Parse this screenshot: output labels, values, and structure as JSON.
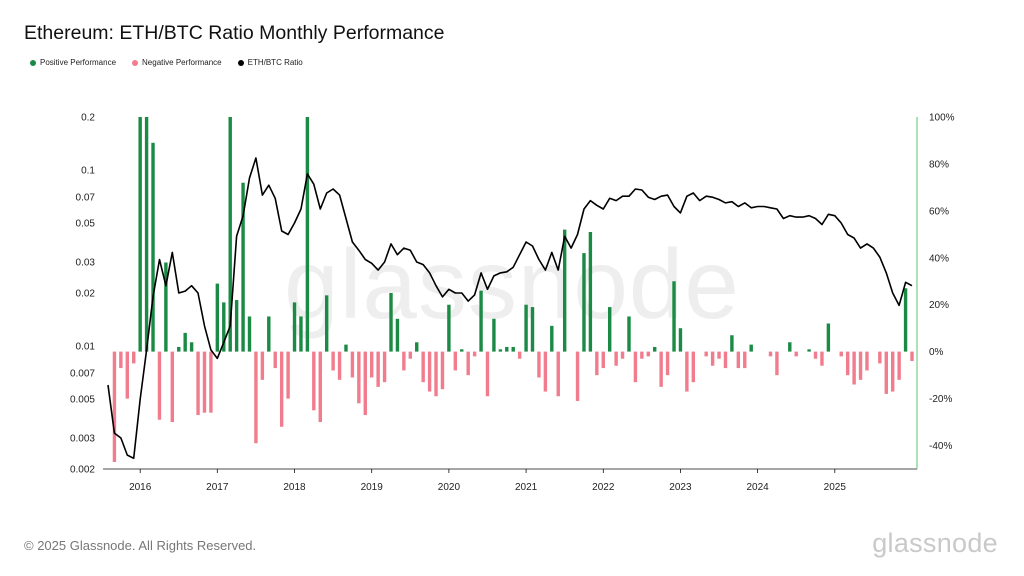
{
  "title": "Ethereum: ETH/BTC Ratio Monthly Performance",
  "legend": [
    {
      "label": "Positive Performance",
      "color": "#1a8a45"
    },
    {
      "label": "Negative Performance",
      "color": "#f07c8d"
    },
    {
      "label": "ETH/BTC Ratio",
      "color": "#000000"
    }
  ],
  "watermark": "glassnode",
  "footer": "© 2025 Glassnode. All Rights Reserved.",
  "brand": "glassnode",
  "colors": {
    "positive": "#1a8a45",
    "negative": "#f07c8d",
    "ratio": "#000000",
    "right_axis": "#5cc46e"
  },
  "chart_data": {
    "type": "bar+line",
    "x_start": "2015-08",
    "x_labels": [
      "2016",
      "2017",
      "2018",
      "2019",
      "2020",
      "2021",
      "2022",
      "2023",
      "2024",
      "2025"
    ],
    "left_axis": {
      "scale": "log",
      "range": [
        0.002,
        0.2
      ],
      "ticks": [
        "0.2",
        "0.1",
        "0.07",
        "0.05",
        "0.03",
        "0.02",
        "0.01",
        "0.007",
        "0.005",
        "0.003",
        "0.002"
      ]
    },
    "right_axis": {
      "range": [
        -50,
        100
      ],
      "ticks": [
        "100%",
        "80%",
        "60%",
        "40%",
        "20%",
        "0%",
        "-20%",
        "-40%"
      ]
    },
    "series": [
      {
        "name": "Positive Performance / Negative Performance",
        "unit": "% monthly change",
        "values": [
          0,
          -47,
          -7,
          -20,
          -5,
          100,
          100,
          89,
          -29,
          38,
          -30,
          2,
          8,
          4,
          -27,
          -26,
          -26,
          29,
          21,
          100,
          22,
          72,
          15,
          -39,
          -12,
          15,
          -7,
          -32,
          -20,
          21,
          15,
          100,
          -25,
          -30,
          24,
          -8,
          -12,
          3,
          -11,
          -22,
          -27,
          -11,
          -15,
          -13,
          25,
          14,
          -8,
          -3,
          4,
          -13,
          -17,
          -19,
          -16,
          20,
          -8,
          1,
          -10,
          -2,
          26,
          -19,
          14,
          1,
          2,
          2,
          -3,
          20,
          19,
          -11,
          -17,
          11,
          -19,
          52,
          0,
          -21,
          42,
          51,
          -10,
          -7,
          19,
          -6,
          -3,
          15,
          -13,
          -3,
          -2,
          2,
          -15,
          -10,
          30,
          10,
          -17,
          -13,
          0,
          -2,
          -6,
          -3,
          -7,
          7,
          -7,
          -7,
          3,
          0,
          0,
          -2,
          -10,
          0,
          4,
          -2,
          0,
          1,
          -3,
          -6,
          12,
          0,
          -2,
          -10,
          -14,
          -12,
          -8,
          0,
          -5,
          -18,
          -17,
          -12,
          27,
          -4
        ]
      },
      {
        "name": "ETH/BTC Ratio",
        "values": [
          0.006,
          0.0032,
          0.003,
          0.0024,
          0.0023,
          0.005,
          0.0095,
          0.019,
          0.031,
          0.022,
          0.034,
          0.02,
          0.0205,
          0.022,
          0.02,
          0.013,
          0.0095,
          0.0085,
          0.0105,
          0.013,
          0.042,
          0.055,
          0.09,
          0.117,
          0.072,
          0.082,
          0.069,
          0.045,
          0.043,
          0.05,
          0.06,
          0.095,
          0.083,
          0.06,
          0.074,
          0.078,
          0.072,
          0.053,
          0.039,
          0.035,
          0.031,
          0.0295,
          0.027,
          0.03,
          0.038,
          0.033,
          0.036,
          0.035,
          0.03,
          0.029,
          0.026,
          0.022,
          0.019,
          0.021,
          0.02,
          0.02,
          0.018,
          0.0195,
          0.026,
          0.021,
          0.025,
          0.026,
          0.0264,
          0.028,
          0.033,
          0.039,
          0.037,
          0.031,
          0.027,
          0.034,
          0.027,
          0.042,
          0.036,
          0.043,
          0.06,
          0.067,
          0.063,
          0.06,
          0.069,
          0.067,
          0.071,
          0.071,
          0.078,
          0.077,
          0.07,
          0.068,
          0.071,
          0.072,
          0.062,
          0.057,
          0.071,
          0.074,
          0.067,
          0.071,
          0.07,
          0.068,
          0.065,
          0.066,
          0.062,
          0.065,
          0.061,
          0.062,
          0.062,
          0.061,
          0.06,
          0.053,
          0.055,
          0.054,
          0.054,
          0.055,
          0.053,
          0.049,
          0.056,
          0.055,
          0.05,
          0.043,
          0.041,
          0.036,
          0.038,
          0.036,
          0.032,
          0.026,
          0.02,
          0.017,
          0.023,
          0.022
        ]
      }
    ]
  }
}
